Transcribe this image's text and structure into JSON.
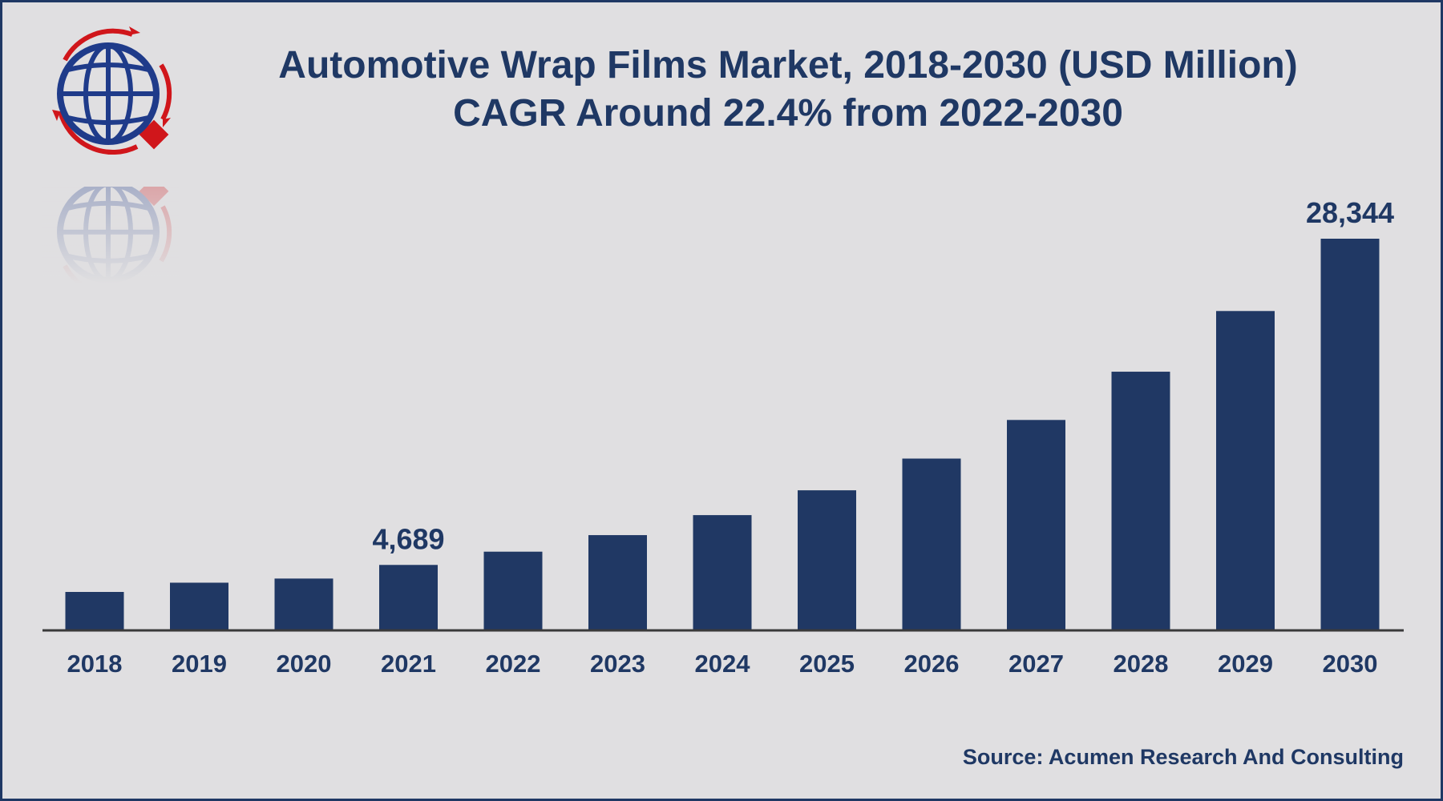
{
  "header": {
    "title_line1": "Automotive Wrap Films Market, 2018-2030 (USD Million)",
    "title_line2": "CAGR Around 22.4% from 2022-2030"
  },
  "footer": {
    "source": "Source: Acumen Research And Consulting"
  },
  "logo": {
    "icon": "globe-logo-icon",
    "colors": [
      "#1f3b8a",
      "#d0161b"
    ]
  },
  "colors": {
    "bar": "#203864",
    "text": "#1f3864",
    "background": "#e0dfe1",
    "axis": "#3a3a3a"
  },
  "chart_data": {
    "type": "bar",
    "categories": [
      "2018",
      "2019",
      "2020",
      "2021",
      "2022",
      "2023",
      "2024",
      "2025",
      "2026",
      "2027",
      "2028",
      "2029",
      "2030"
    ],
    "values": [
      2730,
      3400,
      3700,
      4689,
      5650,
      6850,
      8300,
      10100,
      12400,
      15200,
      18700,
      23100,
      28344
    ],
    "data_labels": {
      "3": "4,689",
      "12": "28,344"
    },
    "title": "Automotive Wrap Films Market, 2018-2030 (USD Million)",
    "subtitle": "CAGR Around 22.4% from 2022-2030",
    "xlabel": "",
    "ylabel": "",
    "ylim": [
      0,
      28344
    ],
    "grid": false,
    "legend": "none"
  }
}
